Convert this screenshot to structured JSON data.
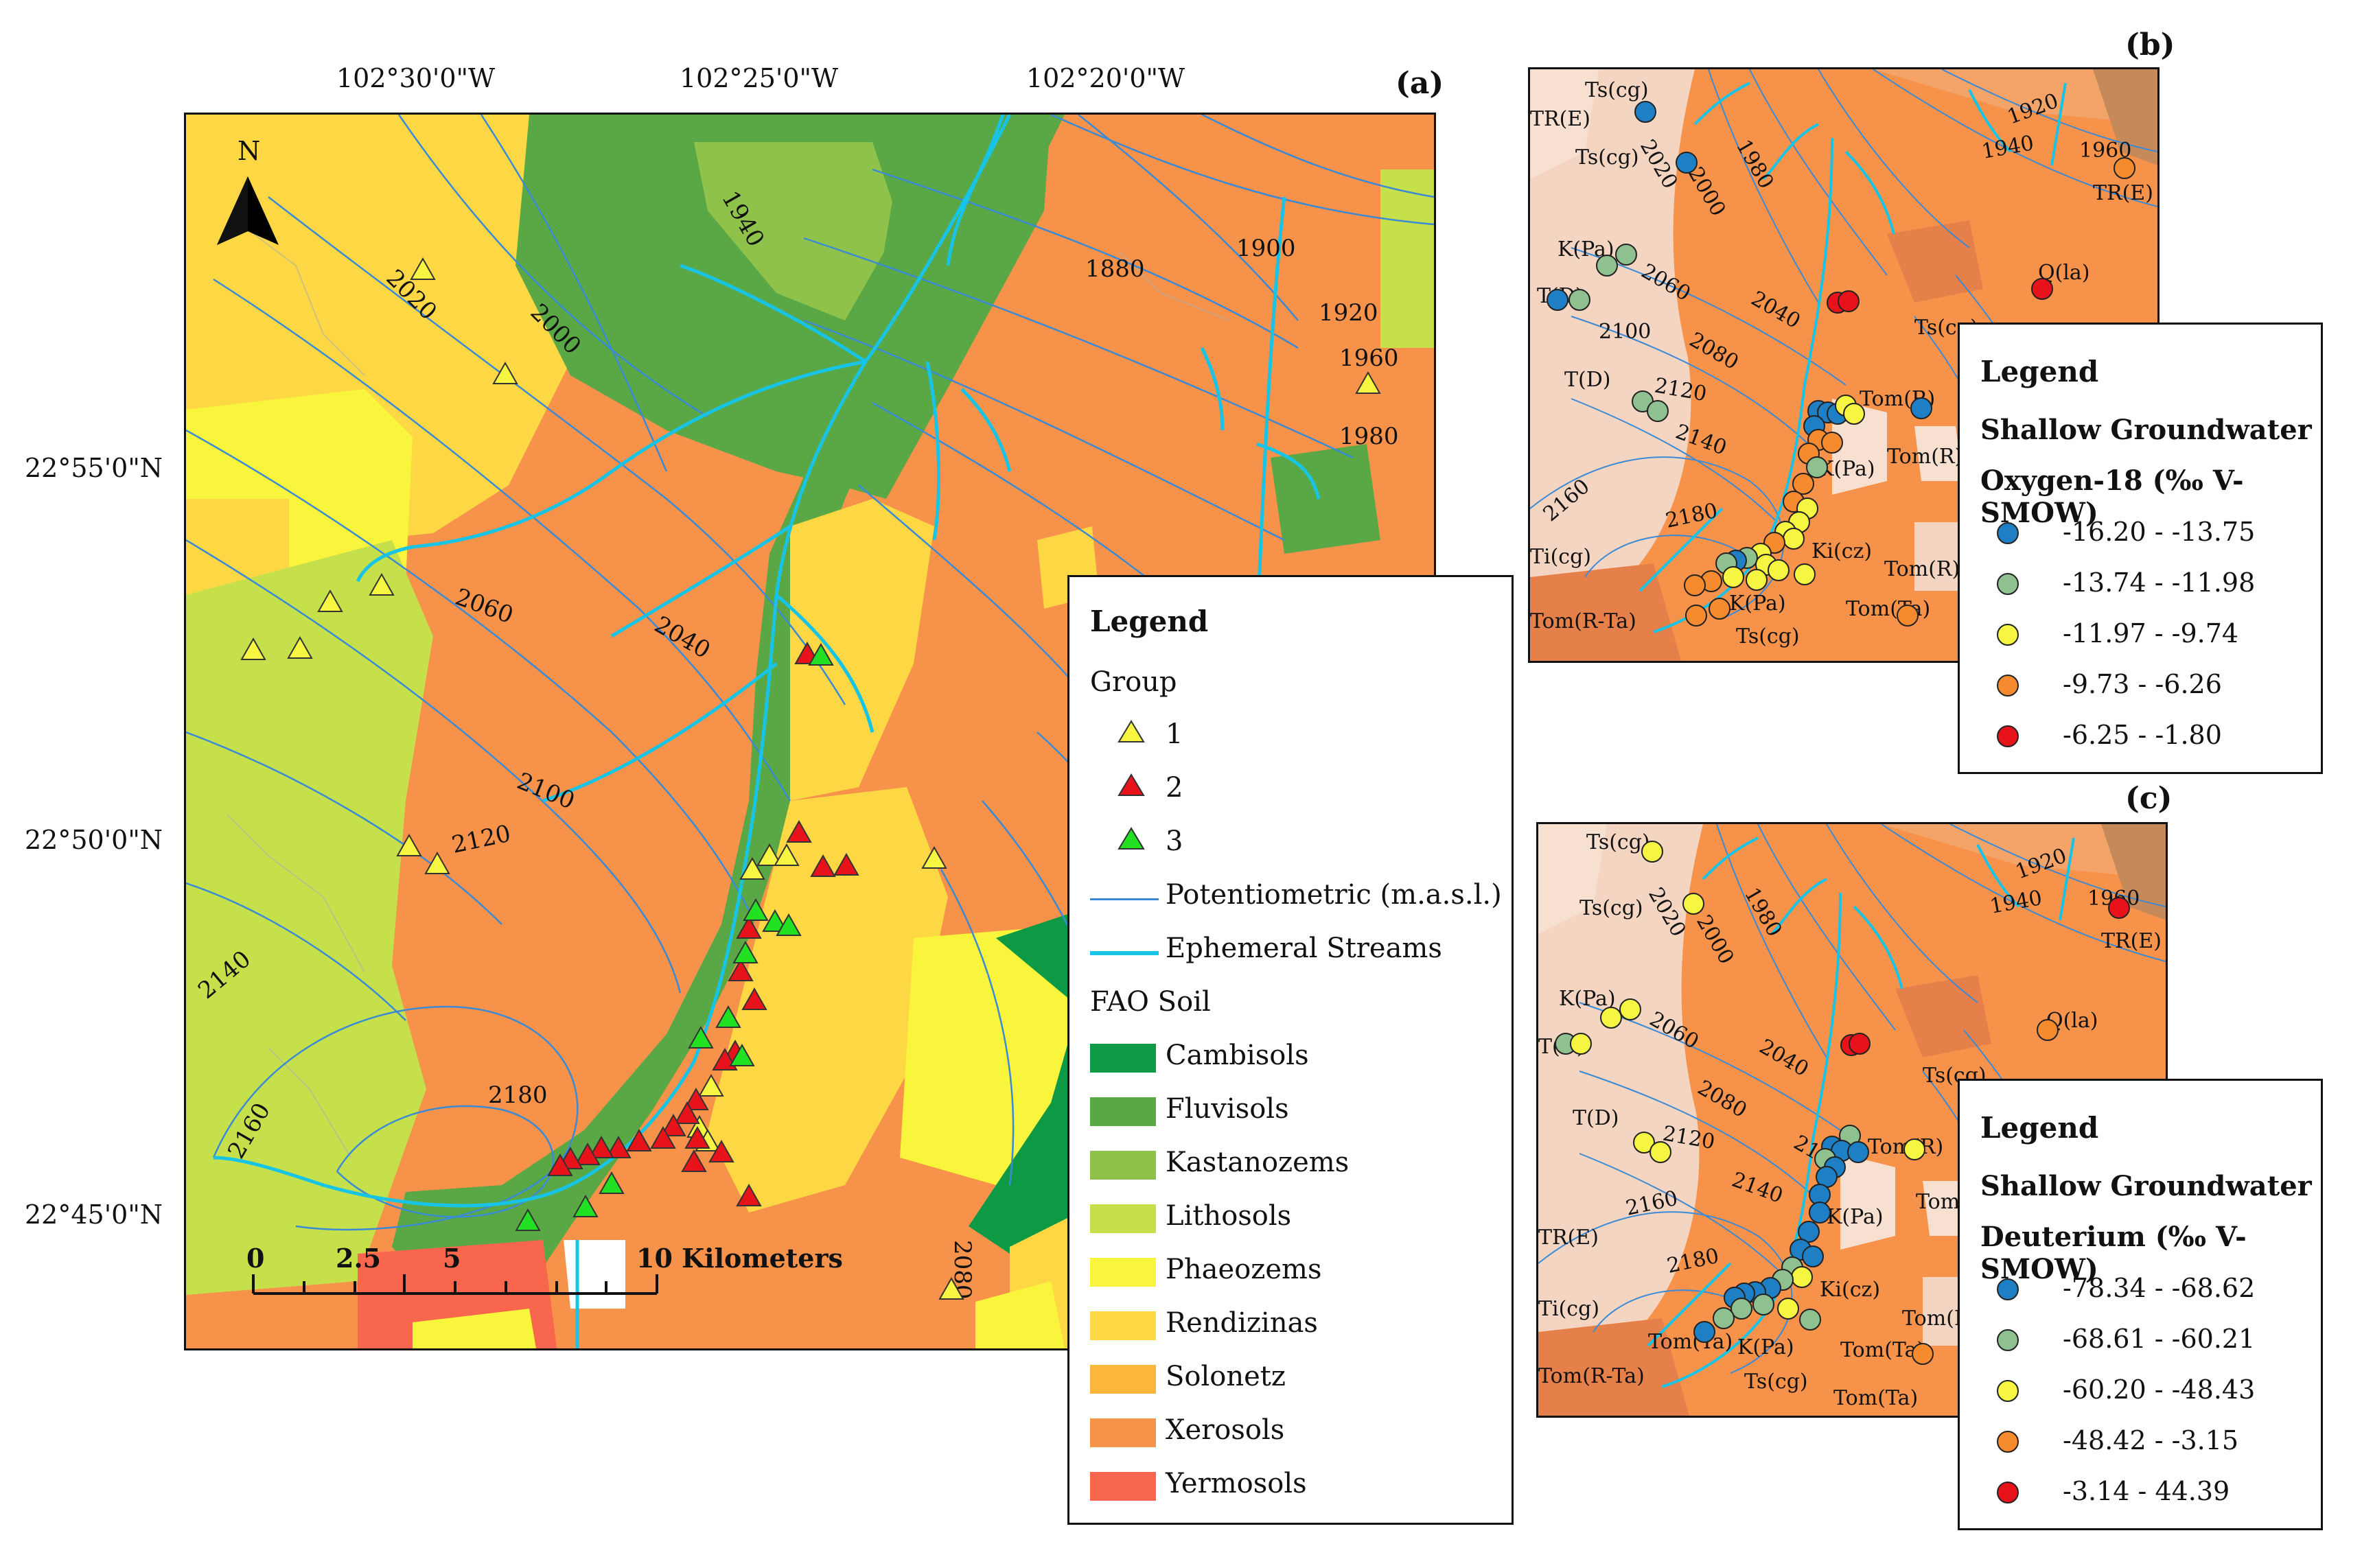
{
  "panels": {
    "a": "(a)",
    "b": "(b)",
    "c": "(c)"
  },
  "main_map": {
    "longitude_labels": [
      "102°30'0\"W",
      "102°25'0\"W",
      "102°20'0\"W"
    ],
    "latitude_labels": [
      "22°55'0\"N",
      "22°50'0\"N",
      "22°45'0\"N"
    ],
    "north_label": "N",
    "contour_labels": [
      "1880",
      "1900",
      "1920",
      "1940",
      "1960",
      "1980",
      "2000",
      "2020",
      "2040",
      "2060",
      "2080",
      "2100",
      "2120",
      "2140",
      "2160",
      "2180"
    ],
    "scale_bar": {
      "ticks": [
        "0",
        "2.5",
        "5",
        "10 Kilometers"
      ]
    }
  },
  "main_legend": {
    "title": "Legend",
    "group_heading": "Group",
    "groups": [
      {
        "label": "1",
        "color": "#f5f542"
      },
      {
        "label": "2",
        "color": "#e8121a"
      },
      {
        "label": "3",
        "color": "#22e022"
      }
    ],
    "potentiometric": "Potentiometric (m.a.s.l.)",
    "streams": "Ephemeral Streams",
    "soil_heading": "FAO Soil",
    "soils": [
      {
        "label": "Cambisols",
        "color": "#0e9a44"
      },
      {
        "label": "Fluvisols",
        "color": "#5aa845"
      },
      {
        "label": "Kastanozems",
        "color": "#8fc24a"
      },
      {
        "label": "Lithosols",
        "color": "#c6e04c"
      },
      {
        "label": "Phaeozems",
        "color": "#f8f53c"
      },
      {
        "label": "Rendizinas",
        "color": "#fdd844"
      },
      {
        "label": "Solonetz",
        "color": "#fbb73c"
      },
      {
        "label": "Xerosols",
        "color": "#f7924a"
      },
      {
        "label": "Yermosols",
        "color": "#f7664d"
      }
    ]
  },
  "geology_labels_b": [
    "Ts(cg)",
    "TR(E)",
    "Ts(cg)",
    "K(Pa)",
    "T(D)",
    "T(D)",
    "Ti(cg)",
    "Tom(R-Ta)",
    "K(Pa)",
    "Ts(cg)",
    "Ki(cz)",
    "K(Pa)",
    "Tom(R)",
    "Tom(R)",
    "Tom(Ta)",
    "Tom(R)",
    "Q(la)",
    "Ts(cg)",
    "TR(E)"
  ],
  "contour_labels_b": [
    "2020",
    "2000",
    "1980",
    "1920",
    "1940",
    "1960",
    "2060",
    "2040",
    "2080",
    "2100",
    "2120",
    "2140",
    "2160",
    "2180"
  ],
  "legend_b": {
    "title": "Legend",
    "sub1": "Shallow Groundwater",
    "sub2": "Oxygen-18 (‰ V-SMOW)",
    "classes": [
      {
        "label": "-16.20 - -13.75",
        "color": "#1f7fc4"
      },
      {
        "label": "-13.74 - -11.98",
        "color": "#8fc08f"
      },
      {
        "label": "-11.97 - -9.74",
        "color": "#f5f542"
      },
      {
        "label": "-9.73 - -6.26",
        "color": "#f58b2e"
      },
      {
        "label": "-6.25 - -1.80",
        "color": "#e8121a"
      }
    ]
  },
  "geology_labels_c": [
    "Ts(cg)",
    "Ts(cg)",
    "K(Pa)",
    "T(D)",
    "T(D)",
    "TR(E)",
    "Ti(cg)",
    "Tom(R-Ta)",
    "Tom(Ta)",
    "K(Pa)",
    "Ts(cg)",
    "Ki(cz)",
    "K(Pa)",
    "Tom(R)",
    "Tom(R)",
    "Tom(Ta)",
    "Tom(Ta)",
    "Q(la)",
    "Ts(cg)",
    "TR(E)",
    "Tom(R)"
  ],
  "contour_labels_c": [
    "2020",
    "2000",
    "1980",
    "1920",
    "1940",
    "1960",
    "2060",
    "2040",
    "2080",
    "2100",
    "2120",
    "2140",
    "2160",
    "2180"
  ],
  "legend_c": {
    "title": "Legend",
    "sub1": "Shallow Groundwater",
    "sub2": "Deuterium (‰ V-SMOW)",
    "classes": [
      {
        "label": "-78.34 - -68.62",
        "color": "#1f7fc4"
      },
      {
        "label": "-68.61 - -60.21",
        "color": "#8fc08f"
      },
      {
        "label": "-60.20 - -48.43",
        "color": "#f5f542"
      },
      {
        "label": "-48.42 - -3.15",
        "color": "#f58b2e"
      },
      {
        "label": "-3.14 - 44.39",
        "color": "#e8121a"
      }
    ]
  }
}
